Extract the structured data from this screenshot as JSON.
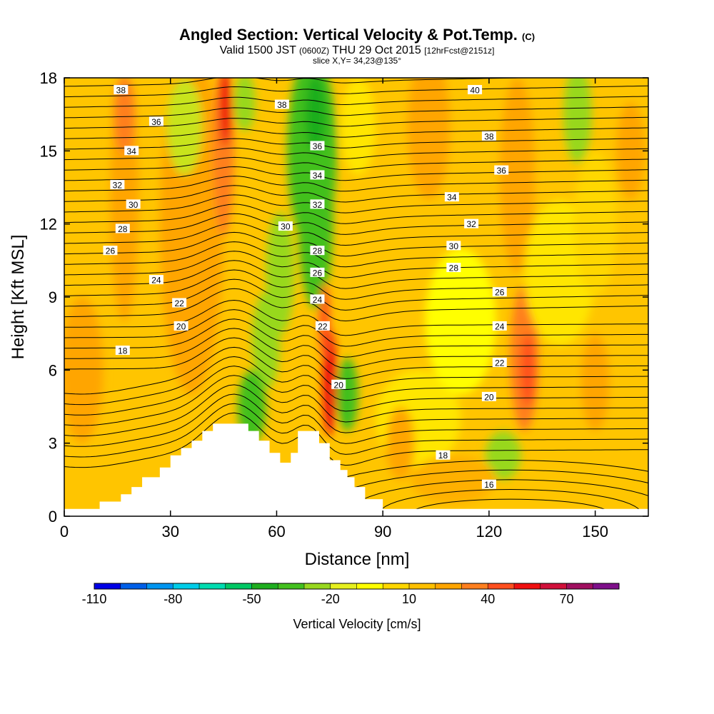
{
  "header": {
    "title": "Angled Section: Vertical Velocity & Pot.Temp.",
    "title_unit": "(C)",
    "valid_a": "Valid 1500 JST",
    "valid_b": "(0600Z)",
    "valid_c": "THU 29 Oct 2015",
    "valid_d": "[12hrFcst@2151z]",
    "slice": "slice X,Y= 34,23@135°"
  },
  "chart_data": {
    "type": "heatmap",
    "xlabel": "Distance [nm]",
    "ylabel": "Height [Kft MSL]",
    "xlim": [
      0,
      165
    ],
    "ylim": [
      0,
      18
    ],
    "x_ticks": [
      "0",
      "30",
      "60",
      "90",
      "120",
      "150"
    ],
    "y_ticks": [
      "0",
      "3",
      "6",
      "9",
      "12",
      "15",
      "18"
    ],
    "colorbar": {
      "label": "Vertical Velocity [cm/s]",
      "tick_labels": [
        "-110",
        "-80",
        "-50",
        "-20",
        "10",
        "40",
        "70"
      ],
      "colors": [
        "#0000e6",
        "#005fe8",
        "#0095f0",
        "#00cde8",
        "#00dcb0",
        "#00c864",
        "#1fae1f",
        "#43c01f",
        "#98d81f",
        "#e6f01f",
        "#ffff00",
        "#ffd700",
        "#ffc000",
        "#ffa500",
        "#ff7f1f",
        "#ff4f1f",
        "#ef1010",
        "#d0103a",
        "#a00f5f",
        "#7e0f8a"
      ]
    },
    "terrain": [
      {
        "x": 0,
        "h": 0.3
      },
      {
        "x": 10,
        "h": 0.6
      },
      {
        "x": 16,
        "h": 0.9
      },
      {
        "x": 19,
        "h": 1.2
      },
      {
        "x": 22,
        "h": 1.6
      },
      {
        "x": 27,
        "h": 2.0
      },
      {
        "x": 30,
        "h": 2.5
      },
      {
        "x": 33,
        "h": 2.8
      },
      {
        "x": 36,
        "h": 3.1
      },
      {
        "x": 39,
        "h": 3.5
      },
      {
        "x": 42,
        "h": 3.8
      },
      {
        "x": 52,
        "h": 3.5
      },
      {
        "x": 55,
        "h": 3.1
      },
      {
        "x": 58,
        "h": 2.6
      },
      {
        "x": 61,
        "h": 2.2
      },
      {
        "x": 64,
        "h": 2.6
      },
      {
        "x": 66,
        "h": 3.5
      },
      {
        "x": 72,
        "h": 3.0
      },
      {
        "x": 75,
        "h": 2.3
      },
      {
        "x": 78,
        "h": 1.9
      },
      {
        "x": 80,
        "h": 1.6
      },
      {
        "x": 82,
        "h": 1.2
      },
      {
        "x": 85,
        "h": 0.7
      },
      {
        "x": 90,
        "h": 0.3
      },
      {
        "x": 165,
        "h": 0.3
      }
    ],
    "isentrope_labels": [
      {
        "text": "38",
        "x": 16,
        "y": 17.5
      },
      {
        "text": "36",
        "x": 26,
        "y": 16.2
      },
      {
        "text": "34",
        "x": 19,
        "y": 15.0
      },
      {
        "text": "32",
        "x": 15,
        "y": 13.6
      },
      {
        "text": "30",
        "x": 19.5,
        "y": 12.8
      },
      {
        "text": "28",
        "x": 16.5,
        "y": 11.8
      },
      {
        "text": "26",
        "x": 13,
        "y": 10.9
      },
      {
        "text": "24",
        "x": 26,
        "y": 9.7
      },
      {
        "text": "22",
        "x": 32.5,
        "y": 8.75
      },
      {
        "text": "20",
        "x": 33,
        "y": 7.8
      },
      {
        "text": "18",
        "x": 16.5,
        "y": 6.8
      },
      {
        "text": "38",
        "x": 61.5,
        "y": 16.9
      },
      {
        "text": "36",
        "x": 71.5,
        "y": 15.2
      },
      {
        "text": "34",
        "x": 71.5,
        "y": 14.0
      },
      {
        "text": "32",
        "x": 71.5,
        "y": 12.8
      },
      {
        "text": "30",
        "x": 62.5,
        "y": 11.9
      },
      {
        "text": "28",
        "x": 71.5,
        "y": 10.9
      },
      {
        "text": "26",
        "x": 71.5,
        "y": 10.0
      },
      {
        "text": "24",
        "x": 71.5,
        "y": 8.9
      },
      {
        "text": "22",
        "x": 73,
        "y": 7.8
      },
      {
        "text": "20",
        "x": 77.5,
        "y": 5.4
      },
      {
        "text": "40",
        "x": 116,
        "y": 17.5
      },
      {
        "text": "38",
        "x": 120,
        "y": 15.6
      },
      {
        "text": "36",
        "x": 123.5,
        "y": 14.2
      },
      {
        "text": "34",
        "x": 109.5,
        "y": 13.1
      },
      {
        "text": "32",
        "x": 115,
        "y": 12.0
      },
      {
        "text": "30",
        "x": 110,
        "y": 11.1
      },
      {
        "text": "28",
        "x": 110,
        "y": 10.2
      },
      {
        "text": "26",
        "x": 123,
        "y": 9.2
      },
      {
        "text": "24",
        "x": 123,
        "y": 7.8
      },
      {
        "text": "22",
        "x": 123,
        "y": 6.3
      },
      {
        "text": "20",
        "x": 120,
        "y": 4.9
      },
      {
        "text": "18",
        "x": 107,
        "y": 2.5
      },
      {
        "text": "16",
        "x": 120,
        "y": 1.3
      }
    ]
  }
}
